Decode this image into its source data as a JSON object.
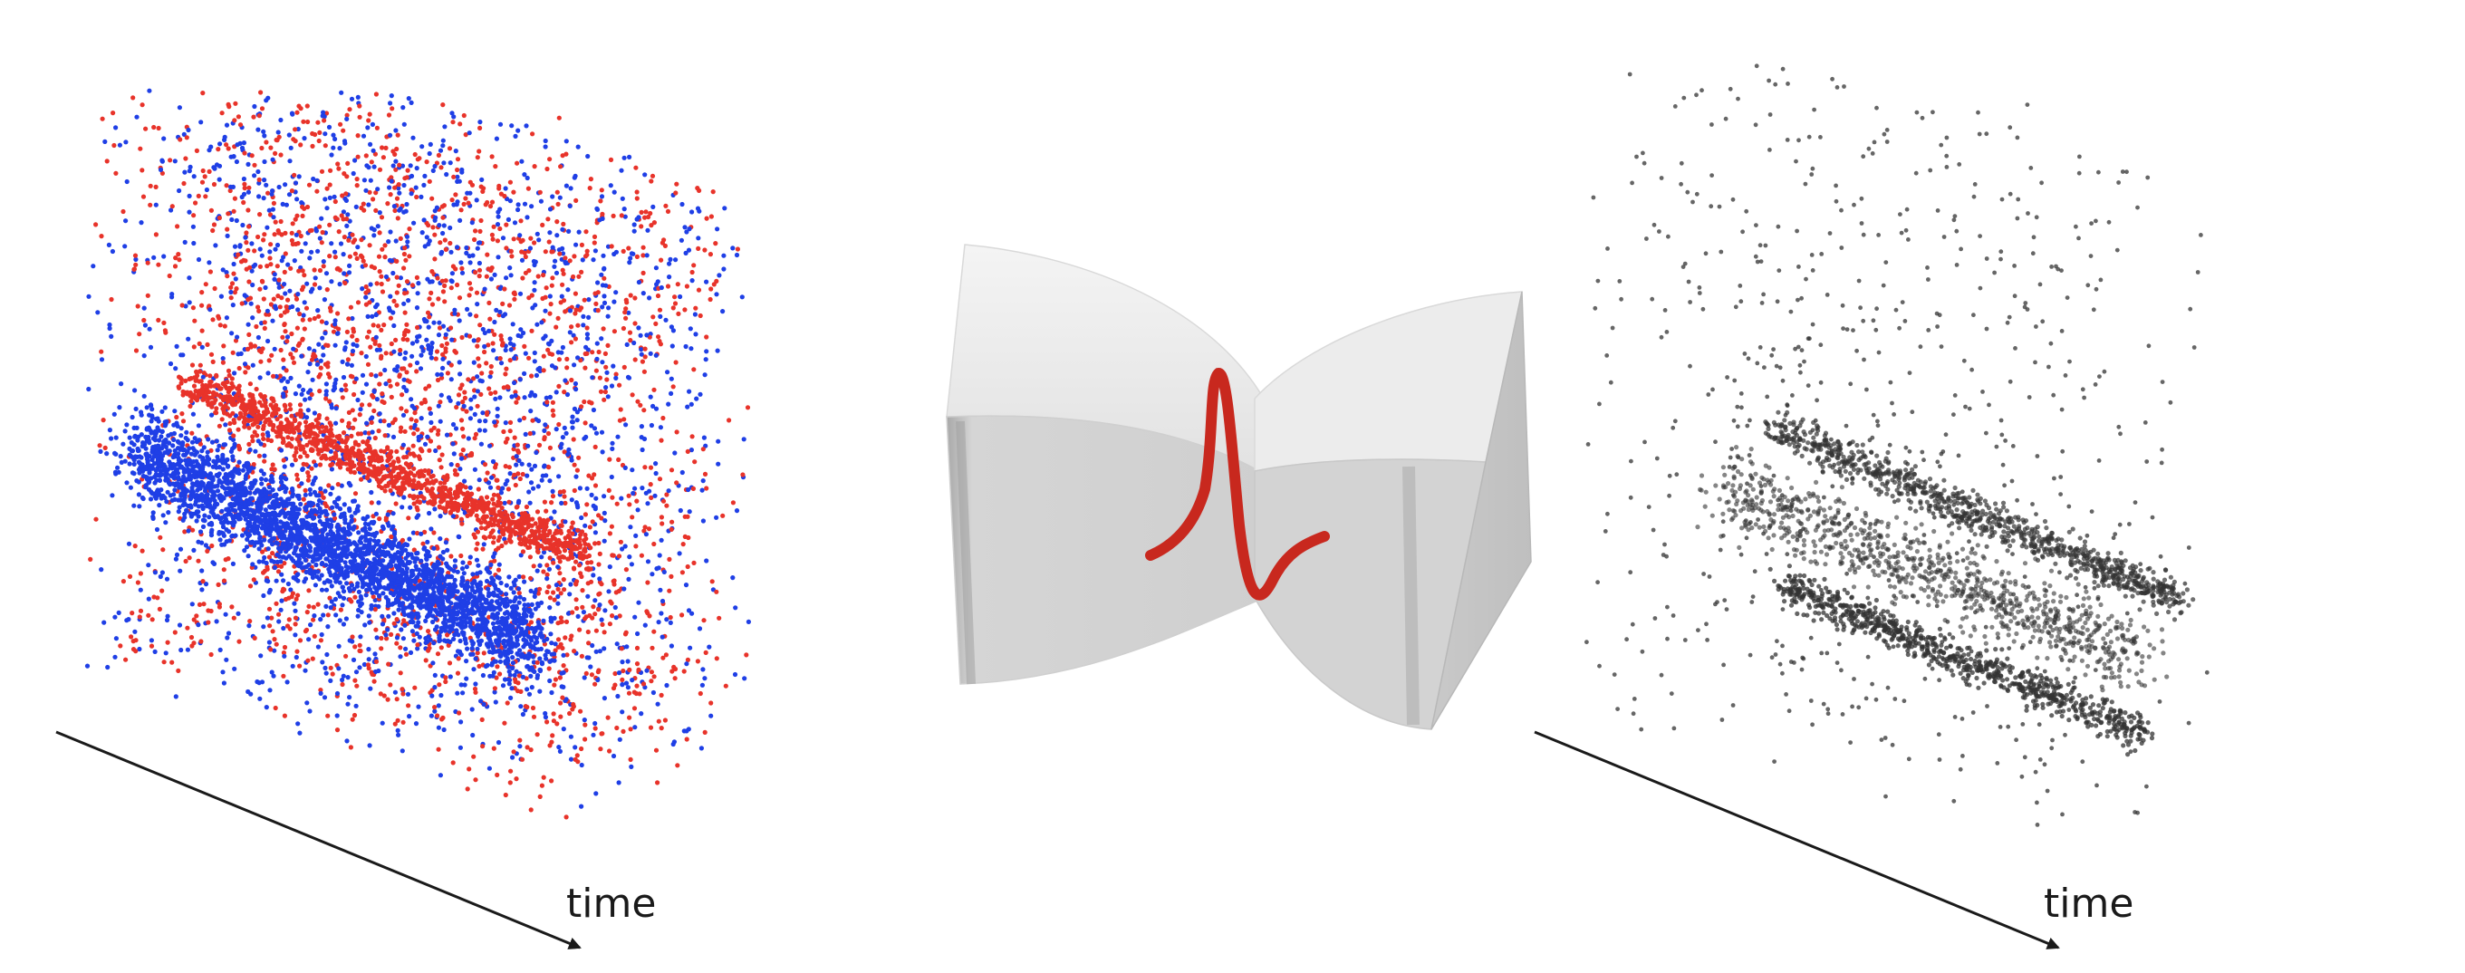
{
  "panels": [
    {
      "name": "input-event-cloud",
      "axis_label": "time",
      "point_colors": {
        "positive": "#e8332a",
        "negative": "#1f3fe6"
      },
      "description_text": ""
    },
    {
      "name": "bowtie-filter",
      "curve_color": "#c8281e"
    },
    {
      "name": "filtered-event-cloud",
      "axis_label": "time",
      "point_color": "#333333"
    }
  ],
  "colors": {
    "background": "#ffffff",
    "axis": "#1a1a1a",
    "box_light": "#e9e9e9",
    "box_dark": "#bdbdbd"
  }
}
